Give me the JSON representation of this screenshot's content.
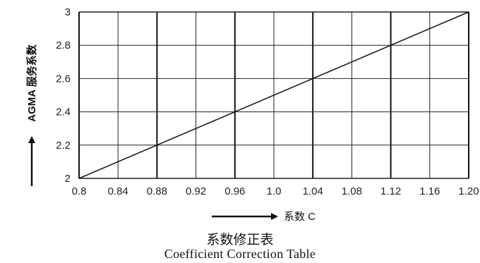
{
  "chart_data": {
    "type": "line",
    "title": "系数修正表",
    "subtitle": "Coefficient Correction Table",
    "xlabel": "系数 C",
    "ylabel": "AGMA 服务系数",
    "x_ticks": [
      "0.8",
      "0.84",
      "0.88",
      "0.92",
      "0.96",
      "1.0",
      "1.04",
      "1.08",
      "1.12",
      "1.16",
      "1.20"
    ],
    "y_ticks": [
      "2",
      "2.2",
      "2.4",
      "2.6",
      "2.8",
      "3"
    ],
    "xlim": [
      0.8,
      1.2
    ],
    "ylim": [
      2.0,
      3.0
    ],
    "grid": true,
    "series": [
      {
        "x": [
          0.8,
          1.2
        ],
        "y": [
          2.0,
          3.0
        ]
      }
    ],
    "colors": {
      "line": "#111111",
      "grid": "#222222",
      "bold_grid": "#111111"
    }
  }
}
